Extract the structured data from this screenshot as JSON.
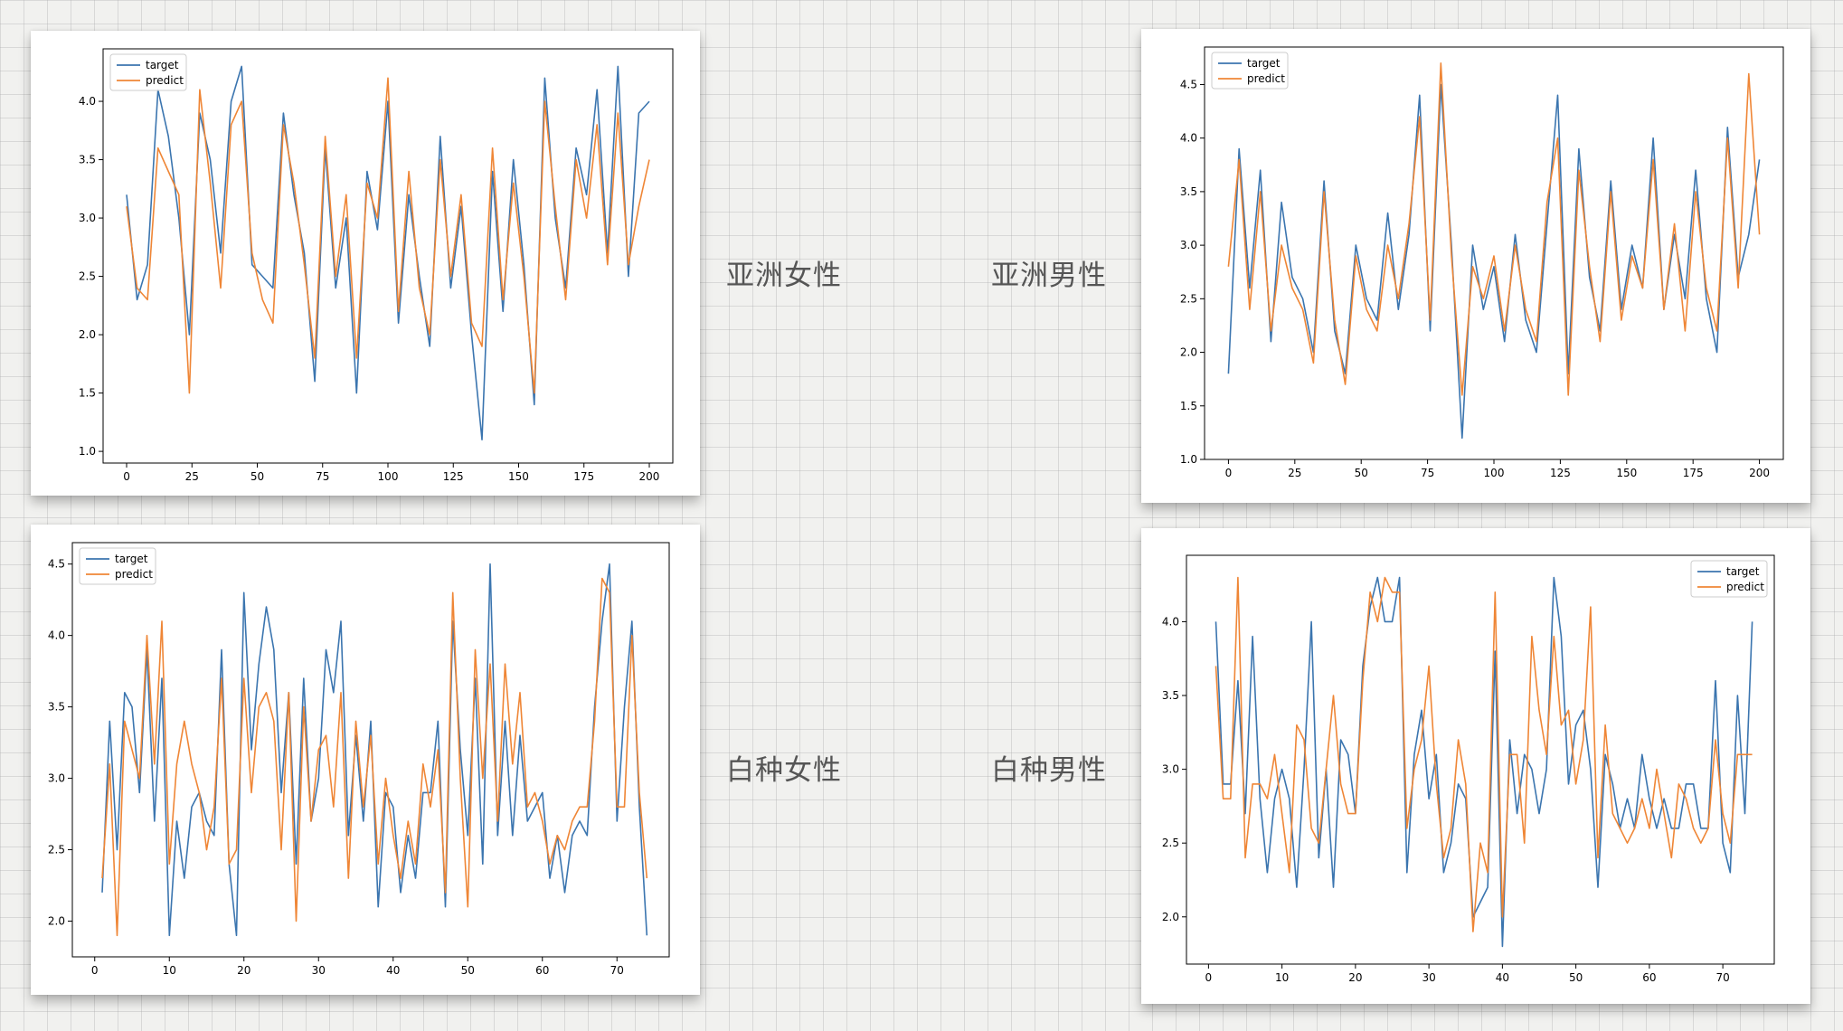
{
  "captions": {
    "asian_female": "亚洲女性",
    "asian_male": "亚洲男性",
    "white_female": "白种女性",
    "white_male": "白种男性"
  },
  "colors": {
    "target": "#3b75af",
    "predict": "#ef8636"
  },
  "chart_data": [
    {
      "type": "line",
      "caption": "亚洲女性",
      "xlim": [
        -9,
        209
      ],
      "ylim": [
        0.9,
        4.45
      ],
      "xticks": [
        0,
        25,
        50,
        75,
        100,
        125,
        150,
        175,
        200
      ],
      "yticks": [
        1.0,
        1.5,
        2.0,
        2.5,
        3.0,
        3.5,
        4.0
      ],
      "legend_position": "upper-left",
      "x": [
        0,
        4,
        8,
        12,
        16,
        20,
        24,
        28,
        32,
        36,
        40,
        44,
        48,
        52,
        56,
        60,
        64,
        68,
        72,
        76,
        80,
        84,
        88,
        92,
        96,
        100,
        104,
        108,
        112,
        116,
        120,
        124,
        128,
        132,
        136,
        140,
        144,
        148,
        152,
        156,
        160,
        164,
        168,
        172,
        176,
        180,
        184,
        188,
        192,
        196,
        200
      ],
      "series": [
        {
          "name": "target",
          "values": [
            3.2,
            2.3,
            2.6,
            4.1,
            3.7,
            3.0,
            2.0,
            3.9,
            3.5,
            2.7,
            4.0,
            4.3,
            2.6,
            2.5,
            2.4,
            3.9,
            3.2,
            2.7,
            1.6,
            3.6,
            2.4,
            3.0,
            1.5,
            3.4,
            2.9,
            4.0,
            2.1,
            3.2,
            2.5,
            1.9,
            3.7,
            2.4,
            3.1,
            2.0,
            1.1,
            3.4,
            2.2,
            3.5,
            2.6,
            1.4,
            4.2,
            3.0,
            2.4,
            3.6,
            3.2,
            4.1,
            2.7,
            4.3,
            2.5,
            3.9,
            4.0
          ]
        },
        {
          "name": "predict",
          "values": [
            3.1,
            2.4,
            2.3,
            3.6,
            3.4,
            3.2,
            1.5,
            4.1,
            3.3,
            2.4,
            3.8,
            4.0,
            2.7,
            2.3,
            2.1,
            3.8,
            3.3,
            2.6,
            1.8,
            3.7,
            2.5,
            3.2,
            1.8,
            3.3,
            3.0,
            4.2,
            2.2,
            3.4,
            2.4,
            2.0,
            3.5,
            2.5,
            3.2,
            2.1,
            1.9,
            3.6,
            2.3,
            3.3,
            2.5,
            1.5,
            4.0,
            3.1,
            2.3,
            3.5,
            3.0,
            3.8,
            2.6,
            3.9,
            2.6,
            3.1,
            3.5
          ]
        }
      ]
    },
    {
      "type": "line",
      "caption": "亚洲男性",
      "xlim": [
        -9,
        209
      ],
      "ylim": [
        1.0,
        4.85
      ],
      "xticks": [
        0,
        25,
        50,
        75,
        100,
        125,
        150,
        175,
        200
      ],
      "yticks": [
        1.0,
        1.5,
        2.0,
        2.5,
        3.0,
        3.5,
        4.0,
        4.5
      ],
      "legend_position": "upper-left",
      "x": [
        0,
        4,
        8,
        12,
        16,
        20,
        24,
        28,
        32,
        36,
        40,
        44,
        48,
        52,
        56,
        60,
        64,
        68,
        72,
        76,
        80,
        84,
        88,
        92,
        96,
        100,
        104,
        108,
        112,
        116,
        120,
        124,
        128,
        132,
        136,
        140,
        144,
        148,
        152,
        156,
        160,
        164,
        168,
        172,
        176,
        180,
        184,
        188,
        192,
        196,
        200
      ],
      "series": [
        {
          "name": "target",
          "values": [
            1.8,
            3.9,
            2.6,
            3.7,
            2.1,
            3.4,
            2.7,
            2.5,
            2.0,
            3.6,
            2.2,
            1.8,
            3.0,
            2.5,
            2.3,
            3.3,
            2.4,
            3.1,
            4.4,
            2.2,
            4.5,
            3.0,
            1.2,
            3.0,
            2.4,
            2.8,
            2.1,
            3.1,
            2.3,
            2.0,
            3.2,
            4.4,
            1.8,
            3.9,
            2.7,
            2.2,
            3.6,
            2.4,
            3.0,
            2.6,
            4.0,
            2.4,
            3.1,
            2.5,
            3.7,
            2.5,
            2.0,
            4.1,
            2.7,
            3.1,
            3.8
          ]
        },
        {
          "name": "predict",
          "values": [
            2.8,
            3.8,
            2.4,
            3.5,
            2.2,
            3.0,
            2.6,
            2.4,
            1.9,
            3.5,
            2.3,
            1.7,
            2.9,
            2.4,
            2.2,
            3.0,
            2.5,
            3.2,
            4.2,
            2.3,
            4.7,
            2.9,
            1.6,
            2.8,
            2.5,
            2.9,
            2.2,
            3.0,
            2.4,
            2.1,
            3.4,
            4.0,
            1.6,
            3.7,
            2.8,
            2.1,
            3.5,
            2.3,
            2.9,
            2.6,
            3.8,
            2.4,
            3.2,
            2.2,
            3.5,
            2.6,
            2.2,
            4.0,
            2.6,
            4.6,
            3.1
          ]
        }
      ]
    },
    {
      "type": "line",
      "caption": "白种女性",
      "xlim": [
        -3,
        77
      ],
      "ylim": [
        1.75,
        4.65
      ],
      "xticks": [
        0,
        10,
        20,
        30,
        40,
        50,
        60,
        70
      ],
      "yticks": [
        2.0,
        2.5,
        3.0,
        3.5,
        4.0,
        4.5
      ],
      "legend_position": "upper-left",
      "x": [
        1,
        2,
        3,
        4,
        5,
        6,
        7,
        8,
        9,
        10,
        11,
        12,
        13,
        14,
        15,
        16,
        17,
        18,
        19,
        20,
        21,
        22,
        23,
        24,
        25,
        26,
        27,
        28,
        29,
        30,
        31,
        32,
        33,
        34,
        35,
        36,
        37,
        38,
        39,
        40,
        41,
        42,
        43,
        44,
        45,
        46,
        47,
        48,
        49,
        50,
        51,
        52,
        53,
        54,
        55,
        56,
        57,
        58,
        59,
        60,
        61,
        62,
        63,
        64,
        65,
        66,
        67,
        68,
        69,
        70,
        71,
        72,
        73,
        74
      ],
      "series": [
        {
          "name": "target",
          "values": [
            2.2,
            3.4,
            2.5,
            3.6,
            3.5,
            2.9,
            3.9,
            2.7,
            3.7,
            1.9,
            2.7,
            2.3,
            2.8,
            2.9,
            2.7,
            2.6,
            3.9,
            2.4,
            1.9,
            4.3,
            3.2,
            3.8,
            4.2,
            3.9,
            2.9,
            3.6,
            2.4,
            3.7,
            2.7,
            3.0,
            3.9,
            3.6,
            4.1,
            2.6,
            3.3,
            2.7,
            3.4,
            2.1,
            2.9,
            2.8,
            2.2,
            2.6,
            2.3,
            2.9,
            2.9,
            3.4,
            2.1,
            4.1,
            3.2,
            2.6,
            3.7,
            2.4,
            4.5,
            2.6,
            3.4,
            2.6,
            3.3,
            2.7,
            2.8,
            2.9,
            2.3,
            2.6,
            2.2,
            2.6,
            2.7,
            2.6,
            3.5,
            4.1,
            4.5,
            2.7,
            3.5,
            4.1,
            2.8,
            1.9
          ]
        },
        {
          "name": "predict",
          "values": [
            2.3,
            3.1,
            1.9,
            3.4,
            3.2,
            3.0,
            4.0,
            3.1,
            4.1,
            2.4,
            3.1,
            3.4,
            3.1,
            2.9,
            2.5,
            2.8,
            3.7,
            2.4,
            2.5,
            3.7,
            2.9,
            3.5,
            3.6,
            3.4,
            2.5,
            3.6,
            2.0,
            3.5,
            2.7,
            3.2,
            3.3,
            2.8,
            3.6,
            2.3,
            3.4,
            2.8,
            3.3,
            2.4,
            3.0,
            2.6,
            2.3,
            2.7,
            2.4,
            3.1,
            2.8,
            3.2,
            2.2,
            4.3,
            3.0,
            2.1,
            3.9,
            3.0,
            3.8,
            2.7,
            3.8,
            3.1,
            3.6,
            2.8,
            2.9,
            2.7,
            2.4,
            2.6,
            2.5,
            2.7,
            2.8,
            2.8,
            3.4,
            4.4,
            4.3,
            2.8,
            2.8,
            4.0,
            2.9,
            2.3
          ]
        }
      ]
    },
    {
      "type": "line",
      "caption": "白种男性",
      "xlim": [
        -3,
        77
      ],
      "ylim": [
        1.68,
        4.45
      ],
      "xticks": [
        0,
        10,
        20,
        30,
        40,
        50,
        60,
        70
      ],
      "yticks": [
        2.0,
        2.5,
        3.0,
        3.5,
        4.0
      ],
      "legend_position": "upper-right",
      "x": [
        1,
        2,
        3,
        4,
        5,
        6,
        7,
        8,
        9,
        10,
        11,
        12,
        13,
        14,
        15,
        16,
        17,
        18,
        19,
        20,
        21,
        22,
        23,
        24,
        25,
        26,
        27,
        28,
        29,
        30,
        31,
        32,
        33,
        34,
        35,
        36,
        37,
        38,
        39,
        40,
        41,
        42,
        43,
        44,
        45,
        46,
        47,
        48,
        49,
        50,
        51,
        52,
        53,
        54,
        55,
        56,
        57,
        58,
        59,
        60,
        61,
        62,
        63,
        64,
        65,
        66,
        67,
        68,
        69,
        70,
        71,
        72,
        73,
        74
      ],
      "series": [
        {
          "name": "target",
          "values": [
            4.0,
            2.9,
            2.9,
            3.6,
            2.7,
            3.9,
            2.8,
            2.3,
            2.8,
            3.0,
            2.8,
            2.2,
            3.0,
            4.0,
            2.4,
            3.0,
            2.2,
            3.2,
            3.1,
            2.7,
            3.7,
            4.1,
            4.3,
            4.0,
            4.0,
            4.3,
            2.3,
            3.1,
            3.4,
            2.8,
            3.1,
            2.3,
            2.5,
            2.9,
            2.8,
            2.0,
            2.1,
            2.2,
            3.8,
            1.8,
            3.2,
            2.7,
            3.1,
            3.0,
            2.7,
            3.0,
            4.3,
            3.9,
            2.9,
            3.3,
            3.4,
            3.0,
            2.2,
            3.1,
            2.9,
            2.6,
            2.8,
            2.6,
            3.1,
            2.8,
            2.6,
            2.8,
            2.6,
            2.6,
            2.9,
            2.9,
            2.6,
            2.6,
            3.6,
            2.5,
            2.3,
            3.5,
            2.7,
            4.0
          ]
        },
        {
          "name": "predict",
          "values": [
            3.7,
            2.8,
            2.8,
            4.3,
            2.4,
            2.9,
            2.9,
            2.8,
            3.1,
            2.7,
            2.3,
            3.3,
            3.2,
            2.6,
            2.5,
            3.0,
            3.5,
            2.9,
            2.7,
            2.7,
            3.6,
            4.2,
            4.0,
            4.3,
            4.2,
            4.2,
            2.6,
            3.0,
            3.2,
            3.7,
            2.9,
            2.4,
            2.6,
            3.2,
            2.9,
            1.9,
            2.5,
            2.3,
            4.2,
            2.0,
            3.1,
            3.1,
            2.5,
            3.9,
            3.4,
            3.1,
            3.9,
            3.3,
            3.4,
            2.9,
            3.2,
            4.1,
            2.4,
            3.3,
            2.7,
            2.6,
            2.5,
            2.6,
            2.8,
            2.6,
            3.0,
            2.7,
            2.4,
            2.9,
            2.8,
            2.6,
            2.5,
            2.6,
            3.2,
            2.7,
            2.5,
            3.1,
            3.1,
            3.1
          ]
        }
      ]
    }
  ]
}
